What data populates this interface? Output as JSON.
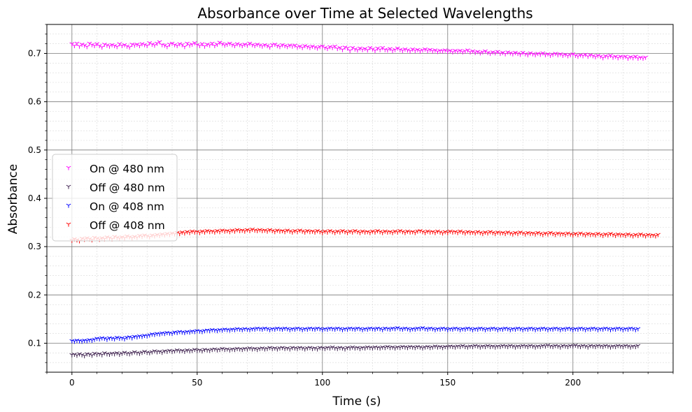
{
  "chart_data": {
    "type": "scatter",
    "title": "Absorbance over Time at Selected Wavelengths",
    "xlabel": "Time (s)",
    "ylabel": "Absorbance",
    "xlim": [
      -10,
      240
    ],
    "ylim": [
      0.04,
      0.76
    ],
    "x_ticks": [
      0,
      50,
      100,
      150,
      200
    ],
    "y_ticks": [
      0.1,
      0.2,
      0.3,
      0.4,
      0.5,
      0.6,
      0.7
    ],
    "x_tick_labels": [
      "0",
      "50",
      "100",
      "150",
      "200"
    ],
    "y_tick_labels": [
      "0.1",
      "0.2",
      "0.3",
      "0.4",
      "0.5",
      "0.6",
      "0.7"
    ],
    "grid": "major and minor",
    "marker": "tri_down",
    "legend_position": "center-left",
    "x_start": 0,
    "x_step": 1,
    "series": [
      {
        "name": "On @ 480 nm",
        "color": "#ff00ff",
        "values": [
          0.72,
          0.716,
          0.721,
          0.715,
          0.719,
          0.717,
          0.714,
          0.721,
          0.718,
          0.716,
          0.72,
          0.716,
          0.713,
          0.719,
          0.717,
          0.715,
          0.718,
          0.716,
          0.714,
          0.72,
          0.716,
          0.718,
          0.715,
          0.713,
          0.719,
          0.717,
          0.719,
          0.716,
          0.72,
          0.718,
          0.716,
          0.722,
          0.719,
          0.717,
          0.721,
          0.724,
          0.718,
          0.717,
          0.714,
          0.719,
          0.721,
          0.718,
          0.716,
          0.72,
          0.718,
          0.714,
          0.721,
          0.717,
          0.719,
          0.722,
          0.718,
          0.716,
          0.72,
          0.715,
          0.719,
          0.717,
          0.721,
          0.716,
          0.719,
          0.723,
          0.72,
          0.717,
          0.719,
          0.721,
          0.718,
          0.716,
          0.72,
          0.718,
          0.716,
          0.719,
          0.717,
          0.721,
          0.718,
          0.716,
          0.719,
          0.717,
          0.715,
          0.718,
          0.716,
          0.713,
          0.718,
          0.719,
          0.716,
          0.714,
          0.718,
          0.716,
          0.714,
          0.717,
          0.715,
          0.717,
          0.713,
          0.715,
          0.712,
          0.716,
          0.714,
          0.712,
          0.715,
          0.713,
          0.711,
          0.714,
          0.715,
          0.712,
          0.71,
          0.714,
          0.712,
          0.715,
          0.71,
          0.712,
          0.708,
          0.713,
          0.711,
          0.706,
          0.712,
          0.709,
          0.707,
          0.711,
          0.708,
          0.71,
          0.707,
          0.712,
          0.709,
          0.706,
          0.711,
          0.708,
          0.712,
          0.708,
          0.707,
          0.71,
          0.706,
          0.708,
          0.711,
          0.708,
          0.706,
          0.709,
          0.707,
          0.705,
          0.709,
          0.706,
          0.708,
          0.705,
          0.707,
          0.709,
          0.706,
          0.708,
          0.705,
          0.707,
          0.704,
          0.706,
          0.705,
          0.707,
          0.704,
          0.706,
          0.703,
          0.706,
          0.704,
          0.706,
          0.703,
          0.705,
          0.707,
          0.703,
          0.705,
          0.702,
          0.704,
          0.701,
          0.703,
          0.705,
          0.702,
          0.7,
          0.703,
          0.701,
          0.704,
          0.7,
          0.702,
          0.699,
          0.703,
          0.701,
          0.699,
          0.702,
          0.7,
          0.698,
          0.702,
          0.699,
          0.697,
          0.701,
          0.699,
          0.697,
          0.7,
          0.698,
          0.701,
          0.697,
          0.699,
          0.696,
          0.698,
          0.7,
          0.697,
          0.699,
          0.696,
          0.698,
          0.695,
          0.697,
          0.699,
          0.696,
          0.694,
          0.697,
          0.695,
          0.698,
          0.694,
          0.697,
          0.695,
          0.693,
          0.696,
          0.694,
          0.691,
          0.695,
          0.693,
          0.696,
          0.692,
          0.694,
          0.691,
          0.694,
          0.692,
          0.694,
          0.69,
          0.693,
          0.691,
          0.694,
          0.69,
          0.692,
          0.69,
          0.692
        ]
      },
      {
        "name": "Off @ 480 nm",
        "color": "#3d1f4d",
        "values": [
          0.076,
          0.077,
          0.075,
          0.078,
          0.076,
          0.074,
          0.078,
          0.077,
          0.075,
          0.079,
          0.077,
          0.078,
          0.076,
          0.08,
          0.078,
          0.077,
          0.079,
          0.078,
          0.08,
          0.077,
          0.079,
          0.081,
          0.079,
          0.078,
          0.08,
          0.082,
          0.08,
          0.079,
          0.081,
          0.083,
          0.081,
          0.08,
          0.082,
          0.084,
          0.082,
          0.083,
          0.081,
          0.084,
          0.083,
          0.085,
          0.083,
          0.084,
          0.086,
          0.084,
          0.085,
          0.083,
          0.086,
          0.084,
          0.085,
          0.087,
          0.085,
          0.086,
          0.084,
          0.087,
          0.086,
          0.085,
          0.087,
          0.088,
          0.086,
          0.087,
          0.089,
          0.087,
          0.088,
          0.086,
          0.088,
          0.087,
          0.089,
          0.088,
          0.087,
          0.089,
          0.088,
          0.09,
          0.088,
          0.089,
          0.087,
          0.089,
          0.09,
          0.088,
          0.089,
          0.091,
          0.089,
          0.09,
          0.088,
          0.09,
          0.091,
          0.089,
          0.09,
          0.088,
          0.091,
          0.09,
          0.089,
          0.091,
          0.09,
          0.088,
          0.09,
          0.091,
          0.089,
          0.09,
          0.088,
          0.091,
          0.09,
          0.089,
          0.091,
          0.09,
          0.092,
          0.09,
          0.089,
          0.091,
          0.09,
          0.088,
          0.091,
          0.09,
          0.092,
          0.09,
          0.091,
          0.089,
          0.091,
          0.09,
          0.092,
          0.091,
          0.09,
          0.092,
          0.091,
          0.09,
          0.092,
          0.091,
          0.093,
          0.091,
          0.092,
          0.09,
          0.092,
          0.091,
          0.093,
          0.092,
          0.091,
          0.093,
          0.092,
          0.091,
          0.093,
          0.092,
          0.09,
          0.092,
          0.093,
          0.091,
          0.092,
          0.094,
          0.092,
          0.093,
          0.091,
          0.093,
          0.092,
          0.094,
          0.093,
          0.092,
          0.094,
          0.093,
          0.095,
          0.093,
          0.092,
          0.094,
          0.093,
          0.095,
          0.094,
          0.092,
          0.094,
          0.093,
          0.095,
          0.093,
          0.094,
          0.092,
          0.094,
          0.093,
          0.095,
          0.094,
          0.093,
          0.095,
          0.094,
          0.092,
          0.094,
          0.093,
          0.095,
          0.094,
          0.093,
          0.095,
          0.094,
          0.092,
          0.094,
          0.093,
          0.095,
          0.094,
          0.096,
          0.094,
          0.093,
          0.095,
          0.094,
          0.092,
          0.095,
          0.094,
          0.093,
          0.095,
          0.094,
          0.096,
          0.094,
          0.093,
          0.095,
          0.094,
          0.092,
          0.095,
          0.094,
          0.093,
          0.095,
          0.094,
          0.093,
          0.095,
          0.094,
          0.092,
          0.094,
          0.093,
          0.095,
          0.094,
          0.093,
          0.095,
          0.094,
          0.092,
          0.094,
          0.093,
          0.095
        ]
      },
      {
        "name": "On @ 408 nm",
        "color": "#0000ff",
        "values": [
          0.105,
          0.104,
          0.106,
          0.105,
          0.104,
          0.106,
          0.105,
          0.107,
          0.106,
          0.108,
          0.11,
          0.109,
          0.111,
          0.11,
          0.108,
          0.111,
          0.11,
          0.109,
          0.112,
          0.11,
          0.111,
          0.109,
          0.112,
          0.113,
          0.111,
          0.114,
          0.113,
          0.115,
          0.114,
          0.116,
          0.115,
          0.117,
          0.119,
          0.118,
          0.12,
          0.119,
          0.121,
          0.12,
          0.122,
          0.121,
          0.12,
          0.123,
          0.122,
          0.124,
          0.123,
          0.122,
          0.124,
          0.123,
          0.125,
          0.124,
          0.126,
          0.125,
          0.124,
          0.126,
          0.127,
          0.126,
          0.128,
          0.127,
          0.126,
          0.128,
          0.127,
          0.129,
          0.128,
          0.127,
          0.129,
          0.128,
          0.13,
          0.129,
          0.128,
          0.13,
          0.129,
          0.128,
          0.13,
          0.129,
          0.131,
          0.13,
          0.129,
          0.131,
          0.13,
          0.128,
          0.13,
          0.129,
          0.131,
          0.13,
          0.129,
          0.131,
          0.13,
          0.128,
          0.13,
          0.129,
          0.131,
          0.13,
          0.128,
          0.13,
          0.129,
          0.131,
          0.13,
          0.129,
          0.131,
          0.13,
          0.128,
          0.13,
          0.129,
          0.131,
          0.13,
          0.129,
          0.131,
          0.13,
          0.128,
          0.13,
          0.129,
          0.131,
          0.13,
          0.129,
          0.131,
          0.13,
          0.128,
          0.13,
          0.129,
          0.131,
          0.13,
          0.129,
          0.131,
          0.13,
          0.128,
          0.131,
          0.13,
          0.129,
          0.131,
          0.13,
          0.132,
          0.13,
          0.129,
          0.131,
          0.13,
          0.128,
          0.13,
          0.129,
          0.131,
          0.13,
          0.132,
          0.13,
          0.129,
          0.131,
          0.13,
          0.128,
          0.13,
          0.129,
          0.131,
          0.13,
          0.128,
          0.13,
          0.129,
          0.131,
          0.13,
          0.128,
          0.13,
          0.129,
          0.131,
          0.13,
          0.128,
          0.13,
          0.129,
          0.131,
          0.13,
          0.128,
          0.13,
          0.129,
          0.131,
          0.13,
          0.128,
          0.13,
          0.129,
          0.131,
          0.13,
          0.128,
          0.13,
          0.129,
          0.131,
          0.13,
          0.128,
          0.13,
          0.129,
          0.131,
          0.13,
          0.128,
          0.13,
          0.129,
          0.131,
          0.13,
          0.128,
          0.13,
          0.129,
          0.131,
          0.13,
          0.128,
          0.13,
          0.129,
          0.131,
          0.13,
          0.128,
          0.13,
          0.129,
          0.131,
          0.13,
          0.128,
          0.13,
          0.129,
          0.131,
          0.13,
          0.128,
          0.13,
          0.129,
          0.131,
          0.13,
          0.128,
          0.13,
          0.129,
          0.131,
          0.13,
          0.128,
          0.13,
          0.129,
          0.131,
          0.13,
          0.128,
          0.13
        ]
      },
      {
        "name": "Off @ 408 nm",
        "color": "#ff0000",
        "values": [
          0.313,
          0.316,
          0.314,
          0.312,
          0.317,
          0.315,
          0.318,
          0.316,
          0.314,
          0.319,
          0.317,
          0.315,
          0.318,
          0.316,
          0.32,
          0.318,
          0.316,
          0.321,
          0.319,
          0.317,
          0.32,
          0.318,
          0.322,
          0.32,
          0.318,
          0.321,
          0.319,
          0.323,
          0.321,
          0.324,
          0.322,
          0.32,
          0.324,
          0.322,
          0.325,
          0.323,
          0.326,
          0.324,
          0.327,
          0.325,
          0.328,
          0.326,
          0.329,
          0.327,
          0.33,
          0.328,
          0.331,
          0.329,
          0.332,
          0.33,
          0.331,
          0.329,
          0.332,
          0.33,
          0.333,
          0.331,
          0.332,
          0.33,
          0.333,
          0.331,
          0.334,
          0.332,
          0.333,
          0.331,
          0.334,
          0.332,
          0.335,
          0.333,
          0.334,
          0.332,
          0.335,
          0.333,
          0.336,
          0.334,
          0.333,
          0.335,
          0.333,
          0.334,
          0.332,
          0.335,
          0.333,
          0.331,
          0.334,
          0.332,
          0.333,
          0.331,
          0.334,
          0.332,
          0.33,
          0.333,
          0.331,
          0.334,
          0.332,
          0.33,
          0.333,
          0.331,
          0.332,
          0.33,
          0.333,
          0.331,
          0.329,
          0.332,
          0.33,
          0.333,
          0.331,
          0.329,
          0.332,
          0.33,
          0.333,
          0.331,
          0.329,
          0.332,
          0.33,
          0.333,
          0.331,
          0.329,
          0.332,
          0.33,
          0.331,
          0.329,
          0.332,
          0.33,
          0.333,
          0.331,
          0.329,
          0.332,
          0.33,
          0.331,
          0.329,
          0.332,
          0.33,
          0.333,
          0.331,
          0.329,
          0.332,
          0.33,
          0.331,
          0.329,
          0.332,
          0.333,
          0.331,
          0.329,
          0.332,
          0.33,
          0.331,
          0.329,
          0.332,
          0.33,
          0.328,
          0.331,
          0.329,
          0.332,
          0.33,
          0.331,
          0.329,
          0.332,
          0.33,
          0.328,
          0.331,
          0.329,
          0.33,
          0.328,
          0.331,
          0.329,
          0.327,
          0.33,
          0.328,
          0.331,
          0.329,
          0.327,
          0.33,
          0.328,
          0.329,
          0.327,
          0.33,
          0.328,
          0.326,
          0.329,
          0.327,
          0.33,
          0.328,
          0.326,
          0.329,
          0.327,
          0.328,
          0.326,
          0.329,
          0.327,
          0.325,
          0.328,
          0.326,
          0.329,
          0.327,
          0.325,
          0.328,
          0.326,
          0.327,
          0.325,
          0.328,
          0.326,
          0.324,
          0.327,
          0.325,
          0.328,
          0.326,
          0.324,
          0.327,
          0.325,
          0.326,
          0.324,
          0.327,
          0.325,
          0.323,
          0.326,
          0.324,
          0.327,
          0.325,
          0.323,
          0.326,
          0.324,
          0.325,
          0.323,
          0.326,
          0.324,
          0.322,
          0.325,
          0.323,
          0.326,
          0.324,
          0.322,
          0.325,
          0.323,
          0.324,
          0.322,
          0.325
        ]
      }
    ]
  }
}
